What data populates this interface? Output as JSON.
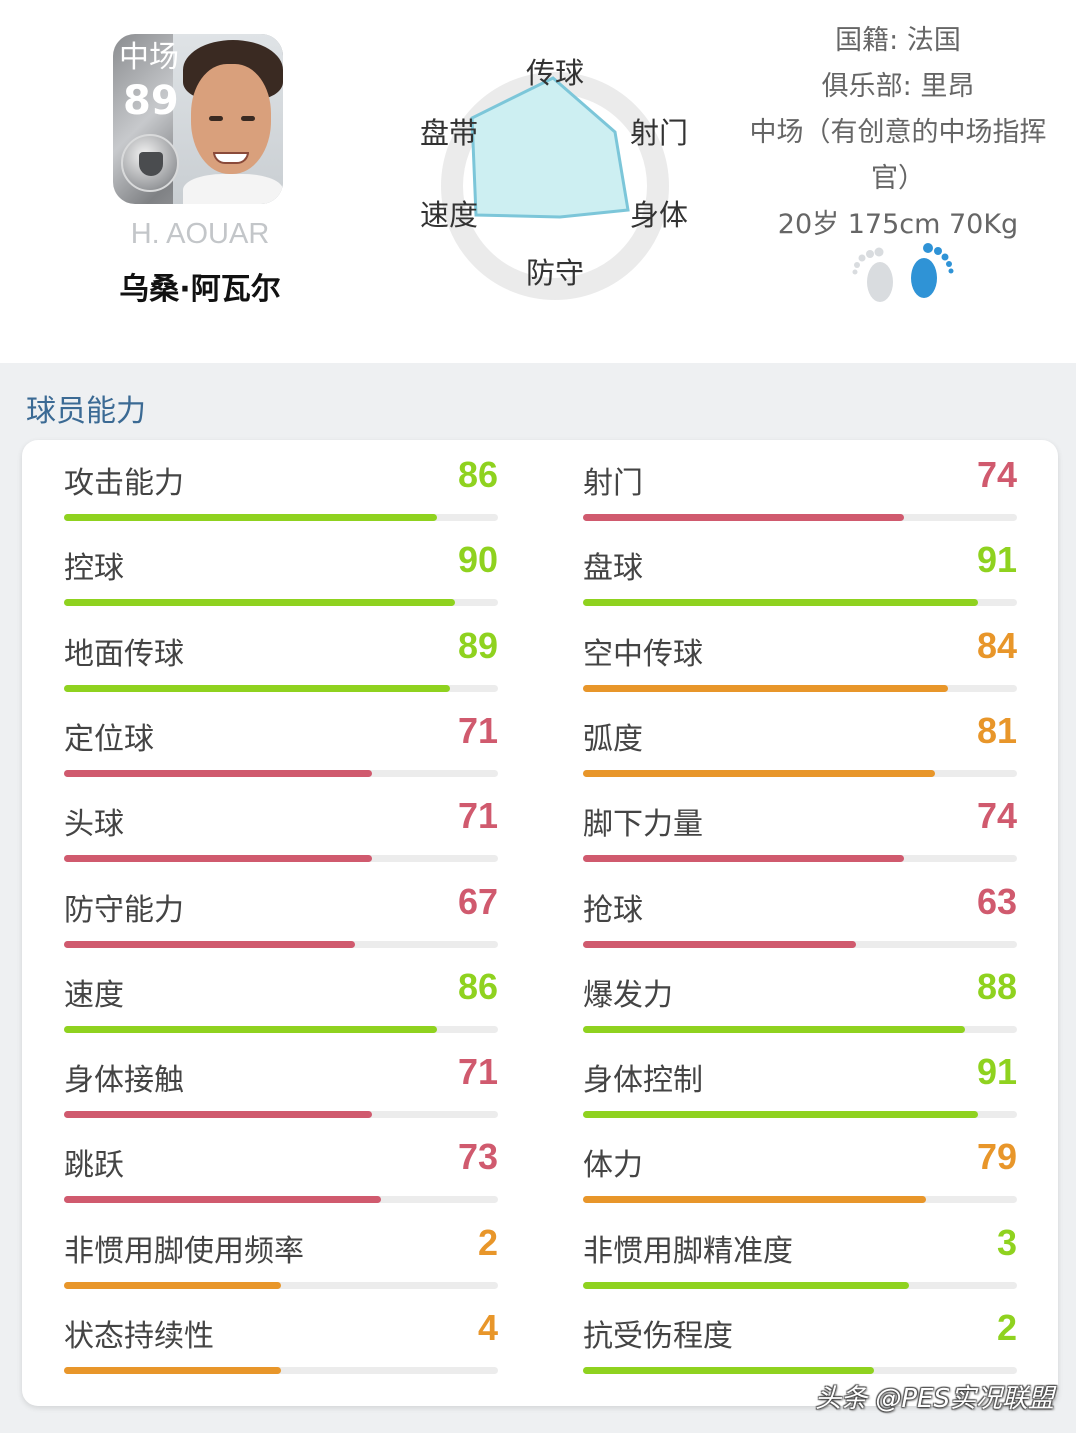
{
  "player": {
    "position": "中场",
    "overall": "89",
    "name_en": "H. AOUAR",
    "name_cn": "乌桑·阿瓦尔"
  },
  "radar": {
    "labels": {
      "pass": "传球",
      "shoot": "射门",
      "physical": "身体",
      "defense": "防守",
      "speed": "速度",
      "dribble": "盘带"
    },
    "fill_color": "#cdeff2",
    "stroke_color": "#7cc6d9"
  },
  "info": {
    "nationality": "国籍: 法国",
    "club": "俱乐部: 里昂",
    "role_line1": "中场（有创意的中场指挥",
    "role_line2": "官）",
    "body": "20岁 175cm 70Kg",
    "strong_foot": "right",
    "foot_active_color": "#2f93d6",
    "foot_inactive_color": "#d9dcdf"
  },
  "section_title": "球员能力",
  "colors": {
    "green": "#8fd21f",
    "red": "#d05a6e",
    "orange": "#e8962a"
  },
  "stats_left": [
    {
      "label": "攻击能力",
      "value": "86",
      "level": 86,
      "color": "green"
    },
    {
      "label": "控球",
      "value": "90",
      "level": 90,
      "color": "green"
    },
    {
      "label": "地面传球",
      "value": "89",
      "level": 89,
      "color": "green"
    },
    {
      "label": "定位球",
      "value": "71",
      "level": 71,
      "color": "red"
    },
    {
      "label": "头球",
      "value": "71",
      "level": 71,
      "color": "red"
    },
    {
      "label": "防守能力",
      "value": "67",
      "level": 67,
      "color": "red"
    },
    {
      "label": "速度",
      "value": "86",
      "level": 86,
      "color": "green"
    },
    {
      "label": "身体接触",
      "value": "71",
      "level": 71,
      "color": "red"
    },
    {
      "label": "跳跃",
      "value": "73",
      "level": 73,
      "color": "red"
    },
    {
      "label": "非惯用脚使用频率",
      "value": "2",
      "level": 50,
      "color": "orange"
    },
    {
      "label": "状态持续性",
      "value": "4",
      "level": 50,
      "color": "orange"
    }
  ],
  "stats_right": [
    {
      "label": "射门",
      "value": "74",
      "level": 74,
      "color": "red"
    },
    {
      "label": "盘球",
      "value": "91",
      "level": 91,
      "color": "green"
    },
    {
      "label": "空中传球",
      "value": "84",
      "level": 84,
      "color": "orange"
    },
    {
      "label": "弧度",
      "value": "81",
      "level": 81,
      "color": "orange"
    },
    {
      "label": "脚下力量",
      "value": "74",
      "level": 74,
      "color": "red"
    },
    {
      "label": "抢球",
      "value": "63",
      "level": 63,
      "color": "red"
    },
    {
      "label": "爆发力",
      "value": "88",
      "level": 88,
      "color": "green"
    },
    {
      "label": "身体控制",
      "value": "91",
      "level": 91,
      "color": "green"
    },
    {
      "label": "体力",
      "value": "79",
      "level": 79,
      "color": "orange"
    },
    {
      "label": "非惯用脚精准度",
      "value": "3",
      "level": 75,
      "color": "green"
    },
    {
      "label": "抗受伤程度",
      "value": "2",
      "level": 67,
      "color": "green"
    }
  ],
  "watermark": "头条 @PES实况联盟"
}
